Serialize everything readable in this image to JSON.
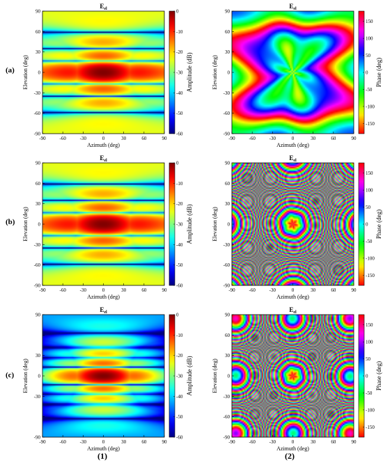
{
  "row_labels": [
    "(a)",
    "(b)",
    "(c)"
  ],
  "column_labels": [
    "(1)",
    "(2)"
  ],
  "chart_data": [
    {
      "id": "a1",
      "type": "heatmap",
      "quantity": "amplitude",
      "title": "E",
      "title_sub": "el",
      "xlabel": "Azimuth (deg)",
      "ylabel": "Elevation (deg)",
      "xlim": [
        -90,
        90
      ],
      "ylim": [
        -90,
        90
      ],
      "xticks": [
        "-90",
        "-60",
        "-30",
        "0",
        "30",
        "60",
        "90"
      ],
      "yticks": [
        "90",
        "60",
        "30",
        "0",
        "-30",
        "-60",
        "-90"
      ],
      "colorbar_label": "Amplitude (dB)",
      "colorbar_ticks": [
        "0",
        "-10",
        "-20",
        "-30",
        "-40",
        "-50",
        "-60"
      ],
      "clim": [
        -60,
        0
      ]
    },
    {
      "id": "a2",
      "type": "heatmap",
      "quantity": "phase",
      "title": "E",
      "title_sub": "el",
      "xlabel": "Azimuth (deg)",
      "ylabel": "Elevation (deg)",
      "xlim": [
        -90,
        90
      ],
      "ylim": [
        -90,
        90
      ],
      "xticks": [
        "-90",
        "-60",
        "-30",
        "0",
        "30",
        "60",
        "90"
      ],
      "yticks": [
        "90",
        "60",
        "30",
        "0",
        "-30",
        "-60",
        "-90"
      ],
      "colorbar_label": "Phase (deg)",
      "colorbar_ticks": [
        "150",
        "100",
        "50",
        "0",
        "-50",
        "-100",
        "-150"
      ],
      "clim": [
        -180,
        180
      ],
      "rings": 2
    },
    {
      "id": "b1",
      "type": "heatmap",
      "quantity": "amplitude",
      "title": "E",
      "title_sub": "el",
      "xlabel": "Azimuth (deg)",
      "ylabel": "Elevation (deg)",
      "xlim": [
        -90,
        90
      ],
      "ylim": [
        -90,
        90
      ],
      "xticks": [
        "-90",
        "-60",
        "-30",
        "0",
        "30",
        "60",
        "90"
      ],
      "yticks": [
        "90",
        "60",
        "30",
        "0",
        "-30",
        "-60",
        "-90"
      ],
      "colorbar_label": "Amplitude (dB)",
      "colorbar_ticks": [
        "0",
        "-10",
        "-20",
        "-30",
        "-40",
        "-50",
        "-60"
      ],
      "clim": [
        -60,
        0
      ]
    },
    {
      "id": "b2",
      "type": "heatmap",
      "quantity": "phase",
      "title": "E",
      "title_sub": "el",
      "xlabel": "Azimuth (deg)",
      "ylabel": "Elevation (deg)",
      "xlim": [
        -90,
        90
      ],
      "ylim": [
        -90,
        90
      ],
      "xticks": [
        "-90",
        "-60",
        "-30",
        "0",
        "30",
        "60",
        "90"
      ],
      "yticks": [
        "90",
        "60",
        "30",
        "0",
        "-30",
        "-60",
        "-90"
      ],
      "colorbar_label": "Phase (deg)",
      "colorbar_ticks": [
        "150",
        "100",
        "50",
        "0",
        "-50",
        "-100",
        "-150"
      ],
      "clim": [
        -180,
        180
      ],
      "rings": 20
    },
    {
      "id": "c1",
      "type": "heatmap",
      "quantity": "amplitude",
      "title": "E",
      "title_sub": "el",
      "xlabel": "Azimuth (deg)",
      "ylabel": "Elevation (deg)",
      "xlim": [
        -90,
        90
      ],
      "ylim": [
        -90,
        90
      ],
      "xticks": [
        "-90",
        "-60",
        "-30",
        "0",
        "30",
        "60",
        "90"
      ],
      "yticks": [
        "90",
        "",
        "30",
        "0",
        "-30",
        "",
        "-90"
      ],
      "colorbar_label": "Amplitude (dB)",
      "colorbar_ticks": [
        "0",
        "-10",
        "-20",
        "-30",
        "-40",
        "-50",
        "-60"
      ],
      "clim": [
        -60,
        0
      ]
    },
    {
      "id": "c2",
      "type": "heatmap",
      "quantity": "phase",
      "title": "E",
      "title_sub": "el",
      "xlabel": "Azimuth (deg)",
      "ylabel": "Elevation (deg)",
      "xlim": [
        -90,
        90
      ],
      "ylim": [
        -90,
        90
      ],
      "xticks": [
        "-90",
        "-60",
        "-30",
        "0",
        "30",
        "60",
        "90"
      ],
      "yticks": [
        "90",
        "60",
        "30",
        "0",
        "-30",
        "-60",
        "-90"
      ],
      "colorbar_label": "Phase (deg)",
      "colorbar_ticks": [
        "150",
        "100",
        "50",
        "0",
        "-50",
        "-100",
        "-150"
      ],
      "clim": [
        -180,
        180
      ],
      "rings": 24
    }
  ]
}
